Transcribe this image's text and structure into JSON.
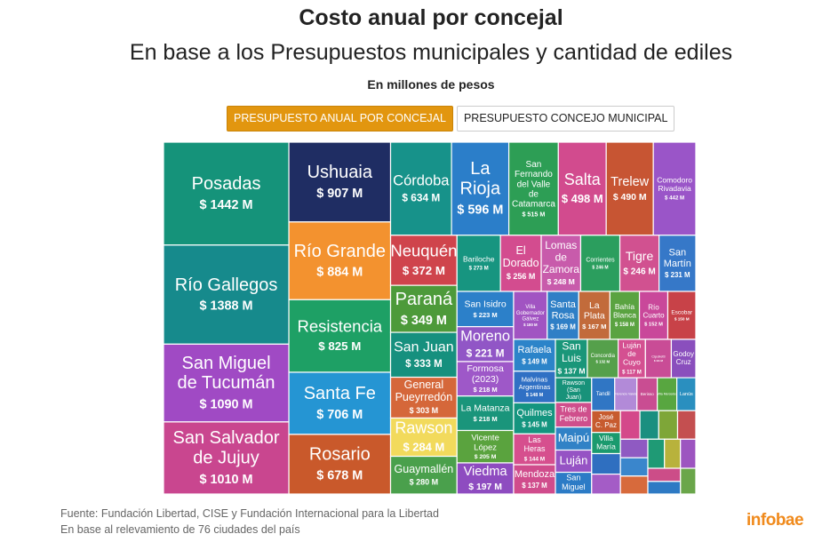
{
  "chart_data": {
    "type": "treemap",
    "title": "Costo anual por concejal",
    "subtitle": "En base a los Presupuestos municipales y cantidad de ediles",
    "unit": "En millones de pesos",
    "categories": [
      "Posadas",
      "Río Gallegos",
      "San Miguel de Tucumán",
      "San Salvador de Jujuy",
      "Ushuaia",
      "Río Grande",
      "Resistencia",
      "Santa Fe",
      "Rosario",
      "Córdoba",
      "La Rioja",
      "San Fernando del Valle de Catamarca",
      "Salta",
      "Trelew",
      "Comodoro Rivadavia",
      "Neuquén",
      "Paraná",
      "San Juan",
      "General Pueyrredón",
      "Rawson",
      "Guaymallén",
      "Bariloche",
      "El Dorado",
      "Lomas de Zamora",
      "Corrientes",
      "Tigre",
      "San Martín",
      "San Isidro",
      "Moreno",
      "Formosa (2023)",
      "La Matanza",
      "Vicente López",
      "Viedma",
      "Villa Gobernador Gálvez",
      "Santa Rosa",
      "La Plata",
      "Bahía Blanca",
      "Río Cuarto",
      "Escobar",
      "Rafaela",
      "Malvinas Argentinas",
      "Quilmes",
      "Las Heras",
      "Mendoza",
      "San Luis",
      "Concordia",
      "Luján de Cuyo",
      "Cipolletti",
      "Godoy Cruz",
      "Rawson (San Juan)",
      "Tres de Febrero",
      "Maipú",
      "Luján",
      "San Miguel",
      "Tandil",
      "Florencio Varela",
      "Berisso",
      "Villa Mercedes",
      "Lanús",
      "José C. Paz",
      "Villa María",
      null,
      null,
      null,
      null,
      null,
      null,
      null,
      null,
      null,
      null,
      null,
      null,
      null,
      null,
      null
    ],
    "values": [
      1442,
      1388,
      1090,
      1010,
      907,
      884,
      825,
      706,
      678,
      634,
      596,
      515,
      498,
      490,
      442,
      372,
      349,
      333,
      303,
      284,
      280,
      273,
      256,
      248,
      246,
      246,
      231,
      223,
      221,
      218,
      218,
      205,
      197,
      180,
      169,
      167,
      158,
      152,
      150,
      149,
      148,
      145,
      144,
      137,
      137,
      132,
      117,
      111,
      105,
      100,
      100,
      93,
      90,
      88,
      85,
      82,
      75,
      72,
      70,
      70,
      68,
      66,
      64,
      62,
      60,
      60,
      58,
      57,
      56,
      55,
      54,
      52,
      50,
      48,
      46,
      44
    ],
    "value_labels": [
      "$ 1442 M",
      "$ 1388 M",
      "$ 1090 M",
      "$ 1010 M",
      "$ 907 M",
      "$ 884 M",
      "$ 825 M",
      "$ 706 M",
      "$ 678 M",
      "$ 634 M",
      "$ 596 M",
      "$ 515 M",
      "$ 498 M",
      "$ 490 M",
      "$ 442 M",
      "$ 372 M",
      "$ 349 M",
      "$ 333 M",
      "$ 303 M",
      "$ 284 M",
      "$ 280 M",
      "$ 273 M",
      "$ 256 M",
      "$ 248 M",
      "$ 246 M",
      "$ 246 M",
      "$ 231 M",
      "$ 223 M",
      "$ 221 M",
      "$ 218 M",
      "$ 218 M",
      "$ 205 M",
      "$ 197 M",
      "$ 180 M",
      "$ 169 M",
      "$ 167 M",
      "$ 158 M",
      "$ 152 M",
      "$ 150 M",
      "$ 149 M",
      "$ 148 M",
      "$ 145 M",
      "$ 144 M",
      "$ 137 M",
      "$ 137 M",
      "$ 132 M",
      "$ 117 M",
      "$ 111 M",
      null,
      null,
      null,
      null,
      null,
      null,
      null,
      null,
      null,
      null,
      null,
      null,
      null,
      null,
      null,
      null,
      null,
      null,
      null,
      null,
      null,
      null,
      null,
      null,
      null,
      null,
      null,
      null
    ],
    "colors": [
      "#15937a",
      "#168a8c",
      "#a04ac4",
      "#c9468f",
      "#1f2d63",
      "#f3922f",
      "#1ea065",
      "#2595d3",
      "#c9592b",
      "#17928a",
      "#2b7ec9",
      "#2d9e55",
      "#d24b8e",
      "#c75533",
      "#9a55c8",
      "#cf444c",
      "#4d9a3a",
      "#16907e",
      "#d5673a",
      "#f2da5c",
      "#4aa04c",
      "#179580",
      "#d34c8f",
      "#c85bab",
      "#2b9e5e",
      "#d15190",
      "#3678c8",
      "#2c80c9",
      "#9156c6",
      "#9e58c8",
      "#1a957b",
      "#5aa33e",
      "#8e4cc0",
      "#a154c2",
      "#2f7fc6",
      "#c26b3b",
      "#5aa341",
      "#c9489a",
      "#c84248",
      "#2c84c9",
      "#3070c4",
      "#14957f",
      "#d64f8e",
      "#d04c8c",
      "#1a9679",
      "#55a04b",
      "#d45091",
      "#c94c96",
      "#8a4fbd",
      "#18927a",
      "#cf4f8c",
      "#3182c6",
      "#9653c4",
      "#2c7bc6",
      "#3076c4",
      "#b28ad8",
      "#c94d92",
      "#58a640",
      "#2a8fbf",
      "#c75b2f",
      "#1b9a6e",
      "#2f6fc0",
      "#a45cc6",
      "#d4488a",
      "#1a8f80",
      "#7ea638",
      "#c44f50",
      "#8f5ac2",
      "#3a86cc",
      "#d76a3c",
      "#1f9a75",
      "#b8b23c",
      "#9d55c0",
      "#cc4d88",
      "#2e7ac4",
      "#6aa64a"
    ]
  },
  "tabs": [
    "PRESUPUESTO ANUAL POR CONCEJAL",
    "PRESUPUESTO CONCEJO MUNICIPAL"
  ],
  "footer": [
    "Fuente: Fundación Libertad, CISE y Fundación Internacional para la Libertad",
    "En base al relevamiento de 76 ciudades del país"
  ],
  "logo": "infobae"
}
